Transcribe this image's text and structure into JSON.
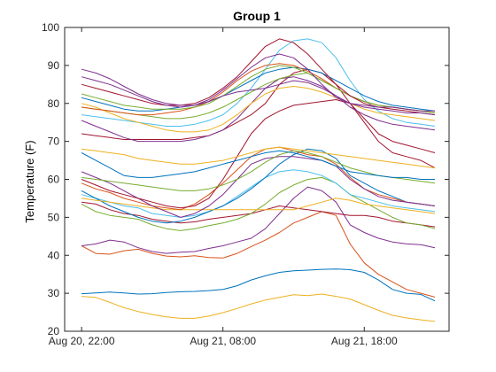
{
  "chart_data": {
    "type": "line",
    "title": "Group 1",
    "xlabel": "",
    "ylabel": "Temperature (F)",
    "ylim": [
      20,
      100
    ],
    "yticks": [
      20,
      30,
      40,
      50,
      60,
      70,
      80,
      90,
      100
    ],
    "xlim": [
      -1.2,
      26.0
    ],
    "xticks": [
      0,
      10,
      20
    ],
    "xtick_labels": [
      "Aug 20, 22:00",
      "Aug 21, 08:00",
      "Aug 21, 18:00"
    ],
    "grid": false,
    "legend": "none",
    "x": [
      0,
      1,
      2,
      3,
      4,
      5,
      6,
      7,
      8,
      9,
      10,
      11,
      12,
      13,
      14,
      15,
      16,
      17,
      18,
      19,
      20,
      21,
      22,
      23,
      24,
      25
    ],
    "series": [
      {
        "color": "#0072BD",
        "values": [
          29.9,
          30.1,
          30.3,
          30.1,
          29.8,
          29.9,
          30.2,
          30.4,
          30.5,
          30.7,
          31.0,
          32.0,
          33.5,
          34.6,
          35.5,
          35.9,
          36.1,
          36.3,
          36.4,
          36.2,
          35.5,
          33.5,
          31.0,
          30.0,
          29.7,
          28.0
        ]
      },
      {
        "color": "#EDB120",
        "values": [
          29.2,
          28.9,
          27.6,
          26.2,
          25.2,
          24.4,
          23.8,
          23.4,
          23.4,
          24.0,
          24.9,
          26.0,
          27.2,
          28.2,
          28.9,
          29.6,
          29.4,
          29.8,
          29.2,
          28.5,
          27.0,
          25.5,
          24.2,
          23.5,
          23.0,
          22.6
        ]
      },
      {
        "color": "#D95319",
        "values": [
          42.5,
          40.5,
          40.3,
          41.2,
          41.6,
          40.5,
          39.8,
          39.6,
          39.9,
          39.4,
          39.3,
          40.5,
          42.3,
          44.0,
          46.0,
          48.5,
          50.0,
          51.5,
          50.5,
          43.0,
          38.0,
          35.0,
          33.0,
          31.0,
          30.0,
          29.0
        ]
      },
      {
        "color": "#7E2F8E",
        "values": [
          42.5,
          43.0,
          44.0,
          43.5,
          42.0,
          41.0,
          40.5,
          40.8,
          41.0,
          41.8,
          42.5,
          43.5,
          44.5,
          47.0,
          51.0,
          55.0,
          58.0,
          57.0,
          54.0,
          48.0,
          46.0,
          44.5,
          43.5,
          43.0,
          42.8,
          42.0
        ]
      },
      {
        "color": "#A2142F",
        "values": [
          54.0,
          53.5,
          52.0,
          51.0,
          50.5,
          49.5,
          49.0,
          48.5,
          48.8,
          49.5,
          50.0,
          50.5,
          51.0,
          52.0,
          53.0,
          52.5,
          52.0,
          51.5,
          51.0,
          50.5,
          50.5,
          50.0,
          49.0,
          48.5,
          48.0,
          47.5
        ]
      },
      {
        "color": "#77AC30",
        "values": [
          53.5,
          51.5,
          50.5,
          50.0,
          49.5,
          48.0,
          47.0,
          46.5,
          47.0,
          47.8,
          48.5,
          49.5,
          51.0,
          53.5,
          56.5,
          58.5,
          60.0,
          60.5,
          59.0,
          56.0,
          54.0,
          52.0,
          50.0,
          48.5,
          48.0,
          47.0
        ]
      },
      {
        "color": "#4DBEEE",
        "values": [
          56.0,
          55.0,
          54.0,
          53.0,
          52.5,
          51.0,
          50.5,
          50.0,
          50.5,
          51.5,
          53.0,
          55.5,
          58.0,
          60.5,
          62.0,
          62.5,
          62.0,
          61.0,
          59.0,
          56.0,
          55.0,
          54.0,
          53.0,
          52.5,
          52.0,
          51.5
        ]
      },
      {
        "color": "#0072BD",
        "values": [
          57.0,
          55.0,
          53.0,
          51.5,
          50.0,
          49.0,
          48.5,
          49.0,
          50.0,
          51.5,
          53.0,
          55.0,
          57.5,
          60.5,
          64.0,
          66.5,
          68.0,
          67.5,
          65.5,
          61.0,
          59.0,
          57.0,
          55.5,
          54.0,
          53.5,
          53.0
        ]
      },
      {
        "color": "#EDB120",
        "values": [
          55.0,
          54.5,
          54.0,
          53.5,
          53.0,
          52.5,
          52.0,
          52.0,
          52.0,
          52.0,
          52.0,
          52.0,
          52.0,
          52.0,
          52.0,
          52.0,
          53.0,
          54.0,
          55.0,
          54.5,
          53.5,
          53.0,
          52.5,
          52.0,
          51.5,
          51.0
        ]
      },
      {
        "color": "#D95319",
        "values": [
          59.0,
          57.5,
          56.5,
          55.0,
          54.0,
          53.0,
          52.5,
          52.0,
          53.5,
          56.0,
          59.0,
          62.5,
          66.0,
          68.0,
          68.5,
          67.5,
          66.5,
          66.0,
          64.0,
          60.5,
          57.5,
          56.0,
          55.0,
          54.0,
          53.5,
          53.0
        ]
      },
      {
        "color": "#7E2F8E",
        "values": [
          62.0,
          60.5,
          59.0,
          57.0,
          55.0,
          53.0,
          51.5,
          50.0,
          51.0,
          53.0,
          56.0,
          60.0,
          64.0,
          65.5,
          66.0,
          66.0,
          65.5,
          65.0,
          63.5,
          60.0,
          57.5,
          55.5,
          54.5,
          54.0,
          53.5,
          53.0
        ]
      },
      {
        "color": "#A2142F",
        "values": [
          60.0,
          58.5,
          57.0,
          56.0,
          55.0,
          54.0,
          53.0,
          52.5,
          53.0,
          55.0,
          60.0,
          66.0,
          72.0,
          76.0,
          78.0,
          79.5,
          80.0,
          80.5,
          81.0,
          80.0,
          75.0,
          70.0,
          67.0,
          66.0,
          65.0,
          63.0
        ]
      },
      {
        "color": "#77AC30",
        "values": [
          60.5,
          60.0,
          59.5,
          59.0,
          58.5,
          58.0,
          57.5,
          57.0,
          57.0,
          57.5,
          58.5,
          60.0,
          62.0,
          64.5,
          66.5,
          67.5,
          67.0,
          66.0,
          64.5,
          63.0,
          62.0,
          61.0,
          60.5,
          60.0,
          59.5,
          59.0
        ]
      },
      {
        "color": "#0072BD",
        "values": [
          67.0,
          65.0,
          63.0,
          61.0,
          60.5,
          60.5,
          61.0,
          61.5,
          62.0,
          63.0,
          64.0,
          65.0,
          66.0,
          67.0,
          67.5,
          67.0,
          66.0,
          65.0,
          63.5,
          62.0,
          61.5,
          61.0,
          60.5,
          60.5,
          60.0,
          60.0
        ]
      },
      {
        "color": "#EDB120",
        "values": [
          68.0,
          67.5,
          67.0,
          66.5,
          65.5,
          65.0,
          64.5,
          64.0,
          64.0,
          64.5,
          65.0,
          66.0,
          67.0,
          68.0,
          68.5,
          68.0,
          67.5,
          67.0,
          66.5,
          66.0,
          65.5,
          65.0,
          64.5,
          64.0,
          63.5,
          63.0
        ]
      },
      {
        "color": "#A2142F",
        "values": [
          72.0,
          71.5,
          71.0,
          70.5,
          70.5,
          70.5,
          70.5,
          70.5,
          71.0,
          71.5,
          73.0,
          75.0,
          77.0,
          80.0,
          85.0,
          88.0,
          89.0,
          88.0,
          85.0,
          80.0,
          76.0,
          72.0,
          70.0,
          69.0,
          68.0,
          67.0
        ]
      },
      {
        "color": "#7E2F8E",
        "values": [
          75.5,
          74.0,
          72.5,
          71.0,
          70.0,
          70.0,
          70.0,
          70.0,
          70.5,
          71.5,
          73.0,
          76.0,
          80.0,
          84.0,
          86.5,
          87.0,
          86.0,
          84.5,
          82.0,
          79.0,
          77.0,
          75.5,
          74.5,
          74.0,
          73.5,
          73.0
        ]
      },
      {
        "color": "#4DBEEE",
        "values": [
          77.0,
          76.5,
          76.0,
          75.5,
          75.0,
          74.5,
          74.0,
          74.0,
          74.5,
          75.5,
          77.0,
          80.0,
          84.0,
          89.0,
          94.0,
          96.5,
          97.0,
          96.0,
          92.0,
          86.0,
          81.0,
          78.0,
          76.0,
          75.0,
          74.5,
          74.0
        ]
      },
      {
        "color": "#77AC30",
        "values": [
          79.0,
          78.5,
          78.0,
          77.5,
          77.0,
          76.5,
          76.0,
          76.0,
          76.5,
          77.5,
          79.0,
          81.0,
          83.0,
          85.0,
          86.5,
          87.5,
          88.0,
          86.0,
          84.0,
          82.0,
          80.5,
          79.5,
          79.0,
          78.5,
          78.0,
          77.5
        ]
      },
      {
        "color": "#EDB120",
        "values": [
          80.0,
          79.0,
          77.5,
          76.0,
          75.0,
          74.0,
          73.0,
          72.5,
          72.5,
          73.0,
          74.5,
          77.0,
          80.0,
          82.5,
          84.0,
          84.5,
          84.0,
          83.0,
          81.5,
          80.0,
          78.5,
          77.5,
          77.0,
          76.5,
          76.0,
          75.5
        ]
      },
      {
        "color": "#0072BD",
        "values": [
          81.5,
          80.5,
          79.5,
          78.5,
          78.0,
          78.0,
          78.5,
          79.0,
          79.5,
          80.5,
          82.0,
          84.0,
          86.0,
          88.0,
          89.0,
          89.5,
          89.0,
          88.0,
          86.0,
          84.0,
          82.0,
          80.5,
          79.5,
          79.0,
          78.5,
          78.0
        ]
      },
      {
        "color": "#D95319",
        "values": [
          79.0,
          78.5,
          78.0,
          77.5,
          77.0,
          77.0,
          77.5,
          78.0,
          79.0,
          80.5,
          83.0,
          86.0,
          88.5,
          90.0,
          90.5,
          90.0,
          88.5,
          86.5,
          84.0,
          82.0,
          80.5,
          79.5,
          79.0,
          78.5,
          78.0,
          77.5
        ]
      },
      {
        "color": "#77AC30",
        "values": [
          82.5,
          81.5,
          80.5,
          79.5,
          79.0,
          78.5,
          78.5,
          78.5,
          79.0,
          80.0,
          82.0,
          84.5,
          87.0,
          89.0,
          90.0,
          89.5,
          88.0,
          86.0,
          84.0,
          82.0,
          80.5,
          79.5,
          79.0,
          78.5,
          78.0,
          77.5
        ]
      },
      {
        "color": "#A2142F",
        "values": [
          85.0,
          84.0,
          83.0,
          82.0,
          81.0,
          80.0,
          79.5,
          79.5,
          80.0,
          81.5,
          84.0,
          87.0,
          91.0,
          95.0,
          97.0,
          96.0,
          93.0,
          89.0,
          85.0,
          82.0,
          80.0,
          79.0,
          78.5,
          78.0,
          77.5,
          77.0
        ]
      },
      {
        "color": "#7E2F8E",
        "values": [
          87.0,
          86.0,
          85.0,
          83.5,
          82.0,
          80.5,
          79.5,
          79.0,
          79.5,
          81.0,
          83.5,
          86.5,
          89.5,
          92.0,
          93.0,
          92.0,
          89.0,
          85.0,
          81.5,
          80.0,
          79.5,
          79.0,
          79.0,
          78.5,
          78.0,
          78.0
        ]
      },
      {
        "color": "#7E2F8E",
        "values": [
          89.0,
          88.0,
          86.5,
          84.5,
          82.5,
          81.0,
          80.0,
          79.5,
          79.5,
          80.5,
          82.0,
          83.0,
          83.5,
          84.0,
          85.0,
          86.0,
          85.5,
          84.0,
          82.0,
          80.0,
          79.0,
          78.5,
          78.0,
          77.5,
          77.5,
          77.0
        ]
      }
    ]
  }
}
